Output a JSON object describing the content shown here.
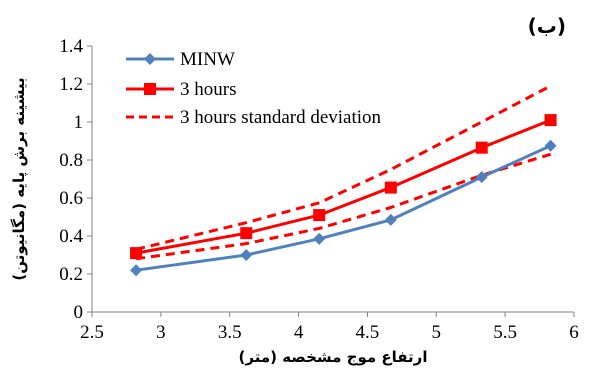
{
  "chart_data": {
    "type": "line",
    "panel_label": "(ب)",
    "xlabel": "ارتفاع موج مشخصه (متر)",
    "ylabel": "بیشینه برش پایه (مگانیوتن)",
    "xlim": [
      2.5,
      6
    ],
    "ylim": [
      0,
      1.4
    ],
    "xticks": [
      2.5,
      3,
      3.5,
      4,
      4.5,
      5,
      5.5,
      6
    ],
    "xtick_labels": [
      "2.5",
      "3",
      "3.5",
      "4",
      "4.5",
      "5",
      "5.5",
      "6"
    ],
    "yticks": [
      0,
      0.2,
      0.4,
      0.6,
      0.8,
      1,
      1.2,
      1.4
    ],
    "ytick_labels": [
      "0",
      "0.2",
      "0.4",
      "0.6",
      "0.8",
      "1",
      "1.2",
      "1.4"
    ],
    "grid": false,
    "legend_position": "top-left",
    "series": [
      {
        "name": "MINW",
        "color": "#4F81BD",
        "style": "solid",
        "marker": "diamond",
        "x": [
          2.82,
          3.62,
          4.15,
          4.67,
          5.33,
          5.83
        ],
        "y": [
          0.22,
          0.3,
          0.385,
          0.485,
          0.71,
          0.875
        ]
      },
      {
        "name": "3 hours",
        "color": "#FF0000",
        "style": "solid",
        "marker": "square",
        "x": [
          2.82,
          3.62,
          4.15,
          4.67,
          5.33,
          5.83
        ],
        "y": [
          0.31,
          0.415,
          0.51,
          0.655,
          0.865,
          1.01
        ]
      },
      {
        "name": "3 hours standard deviation",
        "color": "#FF0000",
        "style": "dashed",
        "marker": "none",
        "x": [
          2.82,
          3.62,
          4.15,
          4.67,
          5.33,
          5.83
        ],
        "y": [
          0.33,
          0.47,
          0.575,
          0.75,
          1.0,
          1.19
        ]
      },
      {
        "name": "",
        "color": "#FF0000",
        "style": "dashed",
        "marker": "none",
        "x": [
          2.82,
          3.62,
          4.15,
          4.67,
          5.33,
          5.83
        ],
        "y": [
          0.28,
          0.36,
          0.44,
          0.55,
          0.72,
          0.83
        ]
      }
    ]
  }
}
